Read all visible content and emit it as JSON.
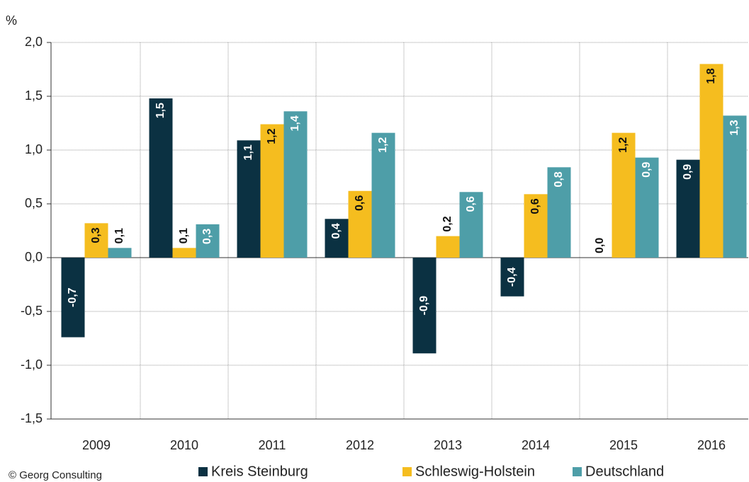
{
  "chart_data": {
    "type": "bar",
    "y_label": "%",
    "categories": [
      "2009",
      "2010",
      "2011",
      "2012",
      "2013",
      "2014",
      "2015",
      "2016"
    ],
    "series": [
      {
        "name": "Kreis Steinburg",
        "color": "#0b3142",
        "values": [
          -0.74,
          1.48,
          1.09,
          0.36,
          -0.89,
          -0.36,
          0.0,
          0.91
        ],
        "value_labels": [
          "-0,7",
          "1,5",
          "1,1",
          "0,4",
          "-0,9",
          "-0,4",
          "0,0",
          "0,9"
        ]
      },
      {
        "name": "Schleswig-Holstein",
        "color": "#f5bd1f",
        "values": [
          0.32,
          0.09,
          1.24,
          0.62,
          0.2,
          0.59,
          1.16,
          1.8
        ],
        "value_labels": [
          "0,3",
          "0,1",
          "1,2",
          "0,6",
          "0,2",
          "0,6",
          "1,2",
          "1,8"
        ]
      },
      {
        "name": "Deutschland",
        "color": "#4e9ea8",
        "values": [
          0.09,
          0.31,
          1.36,
          1.16,
          0.61,
          0.84,
          0.93,
          1.32
        ],
        "value_labels": [
          "0,1",
          "0,3",
          "1,4",
          "1,2",
          "0,6",
          "0,8",
          "0,9",
          "1,3"
        ]
      }
    ],
    "ylim": [
      -1.5,
      2.0
    ],
    "yticks": [
      {
        "value": -1.5,
        "label": "-1,5"
      },
      {
        "value": -1.0,
        "label": "-1,0"
      },
      {
        "value": -0.5,
        "label": "-0,5"
      },
      {
        "value": 0,
        "label": "0,0"
      },
      {
        "value": 0.5,
        "label": "0,5"
      },
      {
        "value": 1.0,
        "label": "1,0"
      },
      {
        "value": 1.5,
        "label": "1,5"
      },
      {
        "value": 2.0,
        "label": "2,0"
      }
    ],
    "grid": true,
    "legend": "bottom",
    "source": "© Georg Consulting"
  }
}
